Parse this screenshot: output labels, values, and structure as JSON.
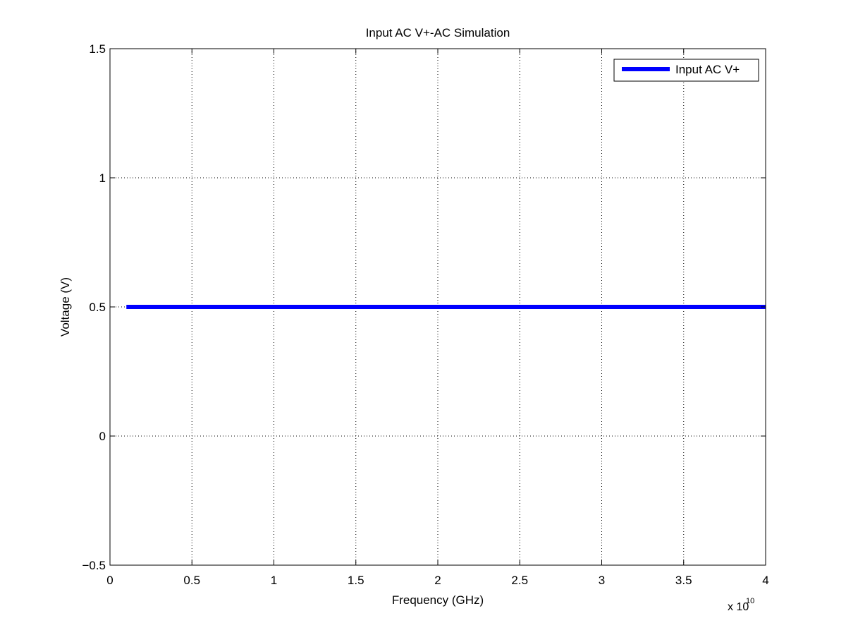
{
  "chart_data": {
    "type": "line",
    "title": "Input AC V+-AC Simulation",
    "xlabel": "Frequency (GHz)",
    "ylabel": "Voltage (V)",
    "x_exponent_label": "x 10",
    "x_exponent_power": "10",
    "xlim": [
      0,
      4
    ],
    "ylim": [
      -0.5,
      1.5
    ],
    "x_ticks": [
      0,
      0.5,
      1,
      1.5,
      2,
      2.5,
      3,
      3.5,
      4
    ],
    "x_tick_labels": [
      "0",
      "0.5",
      "1",
      "1.5",
      "2",
      "2.5",
      "3",
      "3.5",
      "4"
    ],
    "y_ticks": [
      -0.5,
      0,
      0.5,
      1,
      1.5
    ],
    "y_tick_labels": [
      "−0.5",
      "0",
      "0.5",
      "1",
      "1.5"
    ],
    "grid": true,
    "legend_position": "top-right",
    "series": [
      {
        "name": "Input AC V+",
        "color": "#0000ff",
        "x": [
          0.1,
          4
        ],
        "y": [
          0.5,
          0.5
        ]
      }
    ]
  }
}
